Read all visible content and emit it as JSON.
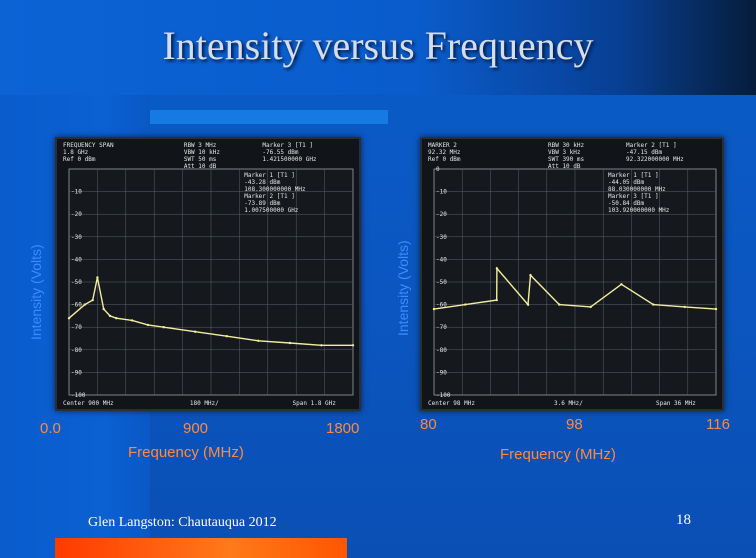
{
  "slide": {
    "title": "Intensity versus Frequency",
    "credit": "Glen Langston: Chautauqua 2012",
    "page_number": "18",
    "colors": {
      "background": "#0a5cc9",
      "axis_text": "#ff8a3d",
      "ylabel_text": "#3d8bff",
      "trace": "#f2eea0"
    }
  },
  "chart_data": [
    {
      "type": "line",
      "xlabel": "Frequency (MHz)",
      "ylabel": "Intensity (Volts)",
      "x_ticks": [
        "0.0",
        "900",
        "1800"
      ],
      "xlim": [
        0,
        1800
      ],
      "ylim": [
        -100,
        0
      ],
      "grid": true,
      "x": [
        0,
        100,
        150,
        180,
        220,
        260,
        300,
        400,
        500,
        600,
        800,
        1000,
        1200,
        1400,
        1600,
        1800
      ],
      "y": [
        -66,
        -60,
        -58,
        -48,
        -62,
        -65,
        -66,
        -67,
        -69,
        -70,
        -72,
        -74,
        -76,
        -77,
        -78,
        -78
      ],
      "screen_text": {
        "header_left": [
          "FREQUENCY SPAN",
          "1.8 GHz",
          "Ref  0 dBm"
        ],
        "header_mid": [
          "RBW 3 MHz",
          "VBW 10 kHz",
          "SWT 50 ms",
          "Att  10 dB"
        ],
        "header_right": [
          "Marker 3 [T1 ]",
          "-76.55 dBm",
          "1.421500000 GHz"
        ],
        "markers": [
          "Marker 1 [T1 ]",
          "-43.28 dBm",
          "108.300000000 MHz",
          "Marker 2 [T1 ]",
          "-73.89 dBm",
          "1.007500000 GHz"
        ],
        "y_axis": [
          "-10",
          "-20",
          "-30",
          "-40",
          "-50",
          "-60",
          "-70",
          "-80",
          "-90",
          "-100"
        ],
        "footer": [
          "Center 900 MHz",
          "180 MHz/",
          "Span 1.8 GHz"
        ]
      }
    },
    {
      "type": "line",
      "xlabel": "Frequency (MHz)",
      "ylabel": "Intensity (Volts)",
      "x_ticks": [
        "80",
        "98",
        "116"
      ],
      "xlim": [
        80,
        116
      ],
      "ylim": [
        -100,
        0
      ],
      "grid": true,
      "x": [
        80,
        84,
        88,
        88.03,
        92,
        92.32,
        96,
        100,
        103.92,
        108,
        112,
        116
      ],
      "y": [
        -62,
        -60,
        -58,
        -44,
        -60,
        -47,
        -60,
        -61,
        -51,
        -60,
        -61,
        -62
      ],
      "screen_text": {
        "header_left": [
          "MARKER 2",
          "92.32 MHz",
          "Ref  0 dBm"
        ],
        "header_mid": [
          "RBW 30 kHz",
          "VBW 3 kHz",
          "SWT 390 ms",
          "Att  10 dB"
        ],
        "header_right": [
          "Marker 2 [T1 ]",
          "-47.15 dBm",
          "92.322000000 MHz"
        ],
        "markers": [
          "Marker 1 [T1 ]",
          "-44.05 dBm",
          "88.030000000 MHz",
          "Marker 3 [T1 ]",
          "-50.84 dBm",
          "103.920000000 MHz"
        ],
        "y_axis": [
          "0",
          "-10",
          "-20",
          "-30",
          "-40",
          "-50",
          "-60",
          "-70",
          "-80",
          "-90",
          "-100"
        ],
        "footer": [
          "Center 98 MHz",
          "3.6 MHz/",
          "Span 36 MHz"
        ]
      }
    }
  ]
}
